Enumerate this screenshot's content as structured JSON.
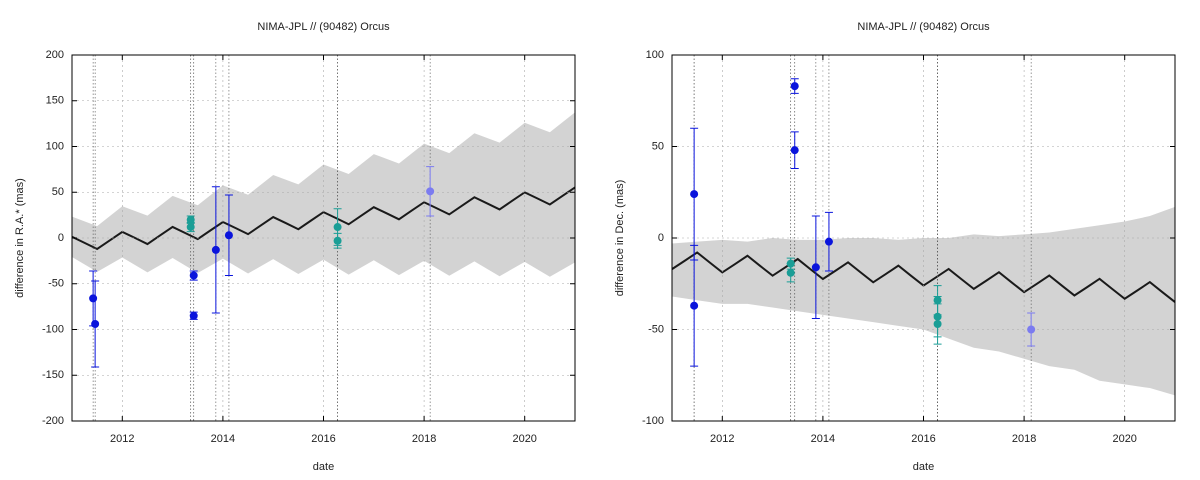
{
  "chart_data": [
    {
      "type": "scatter",
      "title": "NIMA-JPL // (90482) Orcus",
      "xlabel": "date",
      "ylabel": "difference in R.A.* (mas)",
      "xlim": [
        2011.0,
        2021.0
      ],
      "xticks": [
        2012,
        2014,
        2016,
        2018,
        2020
      ],
      "ylim": [
        -200,
        200
      ],
      "yticks": [
        -200,
        -150,
        -100,
        -50,
        0,
        50,
        100,
        150,
        200
      ],
      "grid": true,
      "series": [
        {
          "type": "band",
          "color": "#d3d3d3",
          "x": [
            2011.0,
            2011.5,
            2012.0,
            2012.5,
            2013.0,
            2013.5,
            2014.0,
            2014.5,
            2015.0,
            2015.5,
            2016.0,
            2016.5,
            2017.0,
            2017.5,
            2018.0,
            2018.5,
            2019.0,
            2019.5,
            2020.0,
            2020.5,
            2021.0
          ],
          "upper": [
            23.3,
            13.0,
            34.7,
            24.4,
            46.1,
            35.8,
            57.5,
            47.2,
            68.9,
            58.6,
            80.3,
            70,
            91.7,
            81.4,
            103.1,
            92.8,
            114.5,
            104.2,
            125.9,
            115.6,
            137.3
          ],
          "lower": [
            -20.7,
            -37.0,
            -21.3,
            -37.6,
            -21.9,
            -38.2,
            -22.5,
            -38.8,
            -23.1,
            -39.4,
            -23.7,
            -40,
            -24.3,
            -40.6,
            -24.9,
            -41.2,
            -25.5,
            -41.8,
            -26.1,
            -42.4,
            -26.7
          ]
        },
        {
          "type": "line",
          "color": "#1a1a1a",
          "x": [
            2011.0,
            2011.25,
            2011.5,
            2011.75,
            2012.0,
            2012.25,
            2012.5,
            2012.75,
            2013.0,
            2013.25,
            2013.5,
            2013.75,
            2014.0,
            2014.25,
            2014.5,
            2014.75,
            2015.0,
            2015.25,
            2015.5,
            2015.75,
            2016.0,
            2016.25,
            2016.5,
            2016.75,
            2017.0,
            2017.25,
            2017.5,
            2017.75,
            2018.0,
            2018.25,
            2018.5,
            2018.75,
            2019.0,
            2019.25,
            2019.5,
            2019.75,
            2020.0,
            2020.25,
            2020.5,
            2020.75,
            2021.0
          ],
          "values": [
            1.3,
            -5.3,
            -12.0,
            -2.65,
            6.7,
            0.1,
            -6.6,
            2.8,
            12.1,
            5.5,
            -1.2,
            8.2,
            17.5,
            10.9,
            4.2,
            13.6,
            22.9,
            16.3,
            9.6,
            19.0,
            28.3,
            21.7,
            15.0,
            24.4,
            33.7,
            27.1,
            20.4,
            29.8,
            39.1,
            32.5,
            25.8,
            35.2,
            44.5,
            37.9,
            31.2,
            40.6,
            49.9,
            43.3,
            36.6,
            46.0,
            55.3
          ]
        },
        {
          "type": "errorbar",
          "color": "#0a14dc",
          "x": [
            2011.42,
            2011.46,
            2013.42,
            2013.42,
            2013.86,
            2014.12
          ],
          "values": [
            -66,
            -94,
            -41,
            -85,
            -13,
            3
          ],
          "errors": [
            30,
            47,
            5,
            4,
            69,
            44
          ]
        },
        {
          "type": "errorbar",
          "color": "#1a9e96",
          "x": [
            2013.36,
            2013.36,
            2016.28,
            2016.28
          ],
          "values": [
            20,
            12,
            12,
            -3
          ],
          "errors": [
            4,
            5,
            20,
            8
          ]
        },
        {
          "type": "errorbar",
          "color": "#7b7bf0",
          "x": [
            2018.12
          ],
          "values": [
            51
          ],
          "errors": [
            27
          ]
        }
      ]
    },
    {
      "type": "scatter",
      "title": "NIMA-JPL // (90482) Orcus",
      "xlabel": "date",
      "ylabel": "difference in Dec. (mas)",
      "xlim": [
        2011.0,
        2021.0
      ],
      "xticks": [
        2012,
        2014,
        2016,
        2018,
        2020
      ],
      "ylim": [
        -100,
        100
      ],
      "yticks": [
        -100,
        -50,
        0,
        50,
        100
      ],
      "grid": true,
      "series": [
        {
          "type": "band",
          "color": "#d3d3d3",
          "x": [
            2011.0,
            2011.5,
            2012.0,
            2012.5,
            2013.0,
            2013.5,
            2014.0,
            2014.5,
            2015.0,
            2015.5,
            2016.0,
            2016.5,
            2017.0,
            2017.5,
            2018.0,
            2018.5,
            2019.0,
            2019.5,
            2020.0,
            2020.5,
            2021.0
          ],
          "upper": [
            -3,
            -2,
            -1,
            -2,
            0,
            -1,
            -1,
            0,
            0,
            -1,
            0,
            0,
            2,
            1,
            2,
            3,
            5,
            7,
            9,
            12,
            17
          ],
          "lower": [
            -32,
            -34,
            -36,
            -36,
            -38,
            -40,
            -42,
            -44,
            -46,
            -48,
            -50,
            -55,
            -60,
            -62,
            -66,
            -70,
            -72,
            -78,
            -80,
            -82,
            -86
          ]
        },
        {
          "type": "line",
          "color": "#1a1a1a",
          "x": [
            2011.0,
            2011.25,
            2011.5,
            2011.75,
            2012.0,
            2012.25,
            2012.5,
            2012.75,
            2013.0,
            2013.25,
            2013.5,
            2013.75,
            2014.0,
            2014.25,
            2014.5,
            2014.75,
            2015.0,
            2015.25,
            2015.5,
            2015.75,
            2016.0,
            2016.25,
            2016.5,
            2016.75,
            2017.0,
            2017.25,
            2017.5,
            2017.75,
            2018.0,
            2018.25,
            2018.5,
            2018.75,
            2019.0,
            2019.25,
            2019.5,
            2019.75,
            2020.0,
            2020.25,
            2020.5,
            2020.75,
            2021.0
          ],
          "values": [
            -17.0,
            -12.5,
            -7.9,
            -13.4,
            -18.8,
            -14.3,
            -9.7,
            -15.2,
            -20.6,
            -16.1,
            -11.5,
            -17.0,
            -22.4,
            -17.9,
            -13.3,
            -18.8,
            -24.2,
            -19.7,
            -15.1,
            -20.6,
            -26.0,
            -21.5,
            -16.9,
            -22.4,
            -27.8,
            -23.3,
            -18.7,
            -24.2,
            -29.6,
            -25.1,
            -20.5,
            -26.0,
            -31.4,
            -26.9,
            -22.3,
            -27.8,
            -33.2,
            -28.7,
            -24.1,
            -29.6,
            -35.0
          ]
        },
        {
          "type": "errorbar",
          "color": "#0a14dc",
          "x": [
            2011.44,
            2011.44,
            2013.44,
            2013.44,
            2013.86,
            2014.12
          ],
          "values": [
            24,
            -37,
            83,
            48,
            -16,
            -2
          ],
          "errors": [
            36,
            33,
            4,
            10,
            28,
            16
          ]
        },
        {
          "type": "errorbar",
          "color": "#1a9e96",
          "x": [
            2013.36,
            2013.36,
            2016.28,
            2016.28,
            2016.28
          ],
          "values": [
            -14,
            -19,
            -34,
            -43,
            -47
          ],
          "errors": [
            3,
            5,
            8,
            11,
            11
          ]
        },
        {
          "type": "errorbar",
          "color": "#7b7bf0",
          "x": [
            2018.14
          ],
          "values": [
            -50
          ],
          "errors": [
            9
          ]
        }
      ]
    }
  ]
}
